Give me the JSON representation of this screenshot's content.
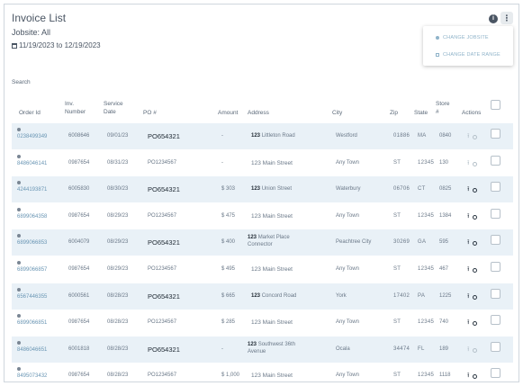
{
  "page": {
    "title": "Invoice List",
    "jobsite": "Jobsite: All",
    "date_range": "11/19/2023 to 12/19/2023"
  },
  "menu": {
    "change_jobsite": "CHANGE JOBSITE",
    "change_date_range": "CHANGE DATE RANGE"
  },
  "search_label": "Search",
  "columns": {
    "order_id": "Order Id",
    "inv_number": [
      "Inv.",
      "Number"
    ],
    "service_date": [
      "Service",
      "Date"
    ],
    "po": "PO #",
    "amount": "Amount",
    "address": "Address",
    "city": "City",
    "zip": "Zip",
    "state": "State",
    "store": [
      "Store",
      "#"
    ],
    "actions": "Actions"
  },
  "rows": [
    {
      "order_id": "0238499349",
      "inv": "6008646",
      "date": "09/01/23",
      "po": "PO654321",
      "po_style": "bold",
      "amount": "-",
      "addr_num": "123",
      "addr": "Littleton Road",
      "addr2": "",
      "city": "Westford",
      "zip": "01886",
      "state": "MA",
      "store": "0840",
      "active": false
    },
    {
      "order_id": "8486046141",
      "inv": "0987654",
      "date": "08/31/23",
      "po": "PO1234567",
      "po_style": "light",
      "amount": "-",
      "addr_num": "",
      "addr": "123 Main Street",
      "addr2": "",
      "city": "Any Town",
      "zip": "ST",
      "state": "12345",
      "store": "130",
      "active": false
    },
    {
      "order_id": "4244193871",
      "inv": "6005830",
      "date": "08/30/23",
      "po": "PO654321",
      "po_style": "bold",
      "amount": "$ 303",
      "addr_num": "123",
      "addr": "Union Street",
      "addr2": "",
      "city": "Waterbury",
      "zip": "06706",
      "state": "CT",
      "store": "0825",
      "active": true
    },
    {
      "order_id": "6899064358",
      "inv": "0987654",
      "date": "08/29/23",
      "po": "PO1234567",
      "po_style": "light",
      "amount": "$ 475",
      "addr_num": "",
      "addr": "123 Main Street",
      "addr2": "",
      "city": "Any Town",
      "zip": "ST",
      "state": "12345",
      "store": "1384",
      "active": true
    },
    {
      "order_id": "6899066853",
      "inv": "6004079",
      "date": "08/29/23",
      "po": "PO654321",
      "po_style": "bold",
      "amount": "$ 400",
      "addr_num": "123",
      "addr": "Market Place",
      "addr2": "Connector",
      "city": "Peachtree City",
      "zip": "30269",
      "state": "GA",
      "store": "595",
      "active": true
    },
    {
      "order_id": "6899066857",
      "inv": "0987654",
      "date": "08/29/23",
      "po": "PO1234567",
      "po_style": "light",
      "amount": "$ 495",
      "addr_num": "",
      "addr": "123 Main Street",
      "addr2": "",
      "city": "Any Town",
      "zip": "ST",
      "state": "12345",
      "store": "467",
      "active": true
    },
    {
      "order_id": "6567446355",
      "inv": "6000561",
      "date": "08/28/23",
      "po": "PO654321",
      "po_style": "bold",
      "amount": "$ 665",
      "addr_num": "123",
      "addr": "Concord Road",
      "addr2": "",
      "city": "York",
      "zip": "17402",
      "state": "PA",
      "store": "1225",
      "active": true
    },
    {
      "order_id": "6899066851",
      "inv": "0987654",
      "date": "08/28/23",
      "po": "PO1234567",
      "po_style": "light",
      "amount": "$ 285",
      "addr_num": "",
      "addr": "123 Main Street",
      "addr2": "",
      "city": "Any Town",
      "zip": "ST",
      "state": "12345",
      "store": "740",
      "active": true
    },
    {
      "order_id": "8486046651",
      "inv": "6001818",
      "date": "08/28/23",
      "po": "PO654321",
      "po_style": "bold",
      "amount": "-",
      "addr_num": "123",
      "addr": "Southwest 36th",
      "addr2": "Avenue",
      "city": "Ocala",
      "zip": "34474",
      "state": "FL",
      "store": "189",
      "active": false
    },
    {
      "order_id": "8495073432",
      "inv": "0987654",
      "date": "08/28/23",
      "po": "PO1234567",
      "po_style": "light",
      "amount": "$ 1,000",
      "addr_num": "",
      "addr": "123 Main Street",
      "addr2": "",
      "city": "Any Town",
      "zip": "ST",
      "state": "12345",
      "store": "1118",
      "active": true
    }
  ],
  "icons": {
    "info": "info-icon",
    "more": "more-vertical-icon",
    "calendar": "calendar-icon",
    "upload": "upload-icon",
    "search": "search-icon"
  },
  "colors": {
    "row_shade": "#e9f1f7",
    "order_id": "#6a96b4",
    "menu_text": "#8fb3c9"
  }
}
